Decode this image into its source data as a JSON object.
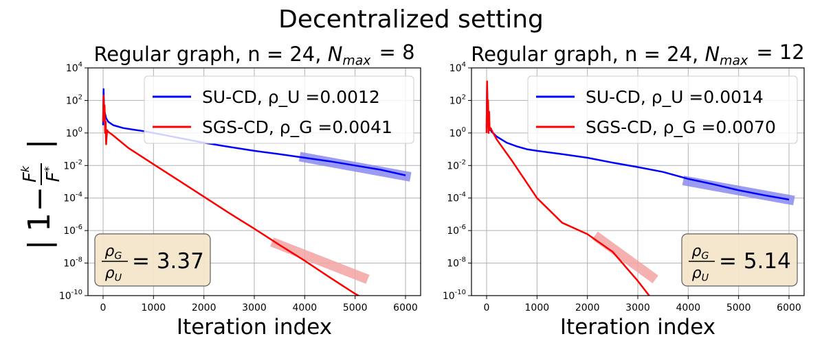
{
  "figure": {
    "suptitle": "Decentralized setting",
    "ylabel": "| 1 − F^k / F^* |"
  },
  "chart_data": [
    {
      "type": "line",
      "title": "Regular graph, n = 24, N_max = 8",
      "xlabel": "Iteration index",
      "ylabel": "| 1 − F^k / F^* |",
      "yscale": "log",
      "xlim": [
        -300,
        6300
      ],
      "ylim": [
        1e-10,
        10000
      ],
      "xticks": [
        0,
        1000,
        2000,
        3000,
        4000,
        5000,
        6000
      ],
      "yticks_exp": [
        -10,
        -8,
        -6,
        -4,
        -2,
        0,
        2,
        4
      ],
      "grid": true,
      "legend_position": "upper right",
      "series": [
        {
          "name": "SU-CD, ρ_U =0.0012",
          "color": "#0000ff",
          "x": [
            0,
            10,
            20,
            40,
            60,
            100,
            200,
            400,
            600,
            800,
            1000,
            1500,
            2000,
            2500,
            3000,
            3500,
            4000,
            4500,
            5000,
            5500,
            6000
          ],
          "y": [
            3,
            500,
            30,
            15,
            8,
            5,
            3,
            2,
            1.6,
            1.3,
            1.0,
            0.5,
            0.25,
            0.14,
            0.08,
            0.05,
            0.03,
            0.018,
            0.01,
            0.0055,
            0.0025
          ],
          "fit": {
            "x": [
              3900,
              6100
            ],
            "y": [
              0.035,
              0.002
            ],
            "color": "#8a8af0"
          }
        },
        {
          "name": "SGS-CD, ρ_G =0.0041",
          "color": "#ff0000",
          "x": [
            0,
            10,
            20,
            30,
            40,
            50,
            60,
            80,
            100,
            200,
            500,
            1000,
            1500,
            2000,
            2500,
            3000,
            3500,
            4000,
            4500,
            5000,
            5200
          ],
          "y": [
            5,
            200,
            10,
            50,
            1,
            5,
            0.2,
            1.5,
            1.2,
            0.7,
            0.12,
            0.012,
            0.0012,
            0.00012,
            1.2e-05,
            1.3e-06,
            1.3e-07,
            1.4e-08,
            1.3e-09,
            1.3e-10,
            6e-11
          ],
          "fit": {
            "x": [
              3350,
              5250
            ],
            "y": [
              2e-07,
              1e-09
            ],
            "color": "#f4a3a3"
          }
        }
      ],
      "ratio_box": {
        "numerator": "ρ_G",
        "denominator": "ρ_U",
        "value": "= 3.37"
      }
    },
    {
      "type": "line",
      "title": "Regular graph, n = 24, N_max = 12",
      "xlabel": "Iteration index",
      "ylabel": "",
      "yscale": "log",
      "xlim": [
        -300,
        6300
      ],
      "ylim": [
        1e-10,
        10000
      ],
      "xticks": [
        0,
        1000,
        2000,
        3000,
        4000,
        5000,
        6000
      ],
      "yticks_exp": [
        -10,
        -8,
        -6,
        -4,
        -2,
        0,
        2,
        4
      ],
      "grid": true,
      "legend_position": "upper right",
      "series": [
        {
          "name": "SU-CD, ρ_U =0.0014",
          "color": "#0000ff",
          "x": [
            0,
            10,
            20,
            40,
            60,
            100,
            200,
            400,
            600,
            800,
            1000,
            1500,
            2000,
            2500,
            3000,
            3500,
            4000,
            4500,
            5000,
            5500,
            6000
          ],
          "y": [
            2,
            1000,
            30,
            5,
            2,
            1.2,
            0.6,
            0.25,
            0.15,
            0.1,
            0.08,
            0.05,
            0.03,
            0.015,
            0.008,
            0.004,
            0.0015,
            0.0007,
            0.0003,
            0.00015,
            8e-05
          ],
          "fit": {
            "x": [
              3900,
              6100
            ],
            "y": [
              0.0012,
              7e-05
            ],
            "color": "#8a8af0"
          }
        },
        {
          "name": "SGS-CD, ρ_G =0.0070",
          "color": "#ff0000",
          "x": [
            0,
            10,
            20,
            30,
            40,
            50,
            60,
            80,
            100,
            200,
            500,
            1000,
            1500,
            2000,
            2500,
            3000,
            3250
          ],
          "y": [
            1,
            1500,
            5,
            100,
            1,
            20,
            1.5,
            2,
            1.5,
            0.4,
            0.02,
            0.0001,
            3e-06,
            6e-07,
            5e-08,
            8e-10,
            8e-11
          ],
          "fit": {
            "x": [
              2150,
              3350
            ],
            "y": [
              5e-07,
              1e-09
            ],
            "color": "#f4a3a3"
          }
        }
      ],
      "ratio_box": {
        "numerator": "ρ_G",
        "denominator": "ρ_U",
        "value": "= 5.14"
      }
    }
  ]
}
